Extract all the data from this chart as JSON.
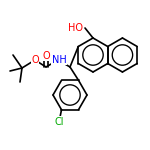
{
  "bg_color": "#ffffff",
  "bond_color": "#000000",
  "bond_lw": 1.2,
  "atom_colors": {
    "O": "#ff0000",
    "N": "#0000ff",
    "Cl": "#00aa00",
    "H": "#000000",
    "C": "#000000"
  },
  "font_size": 7
}
